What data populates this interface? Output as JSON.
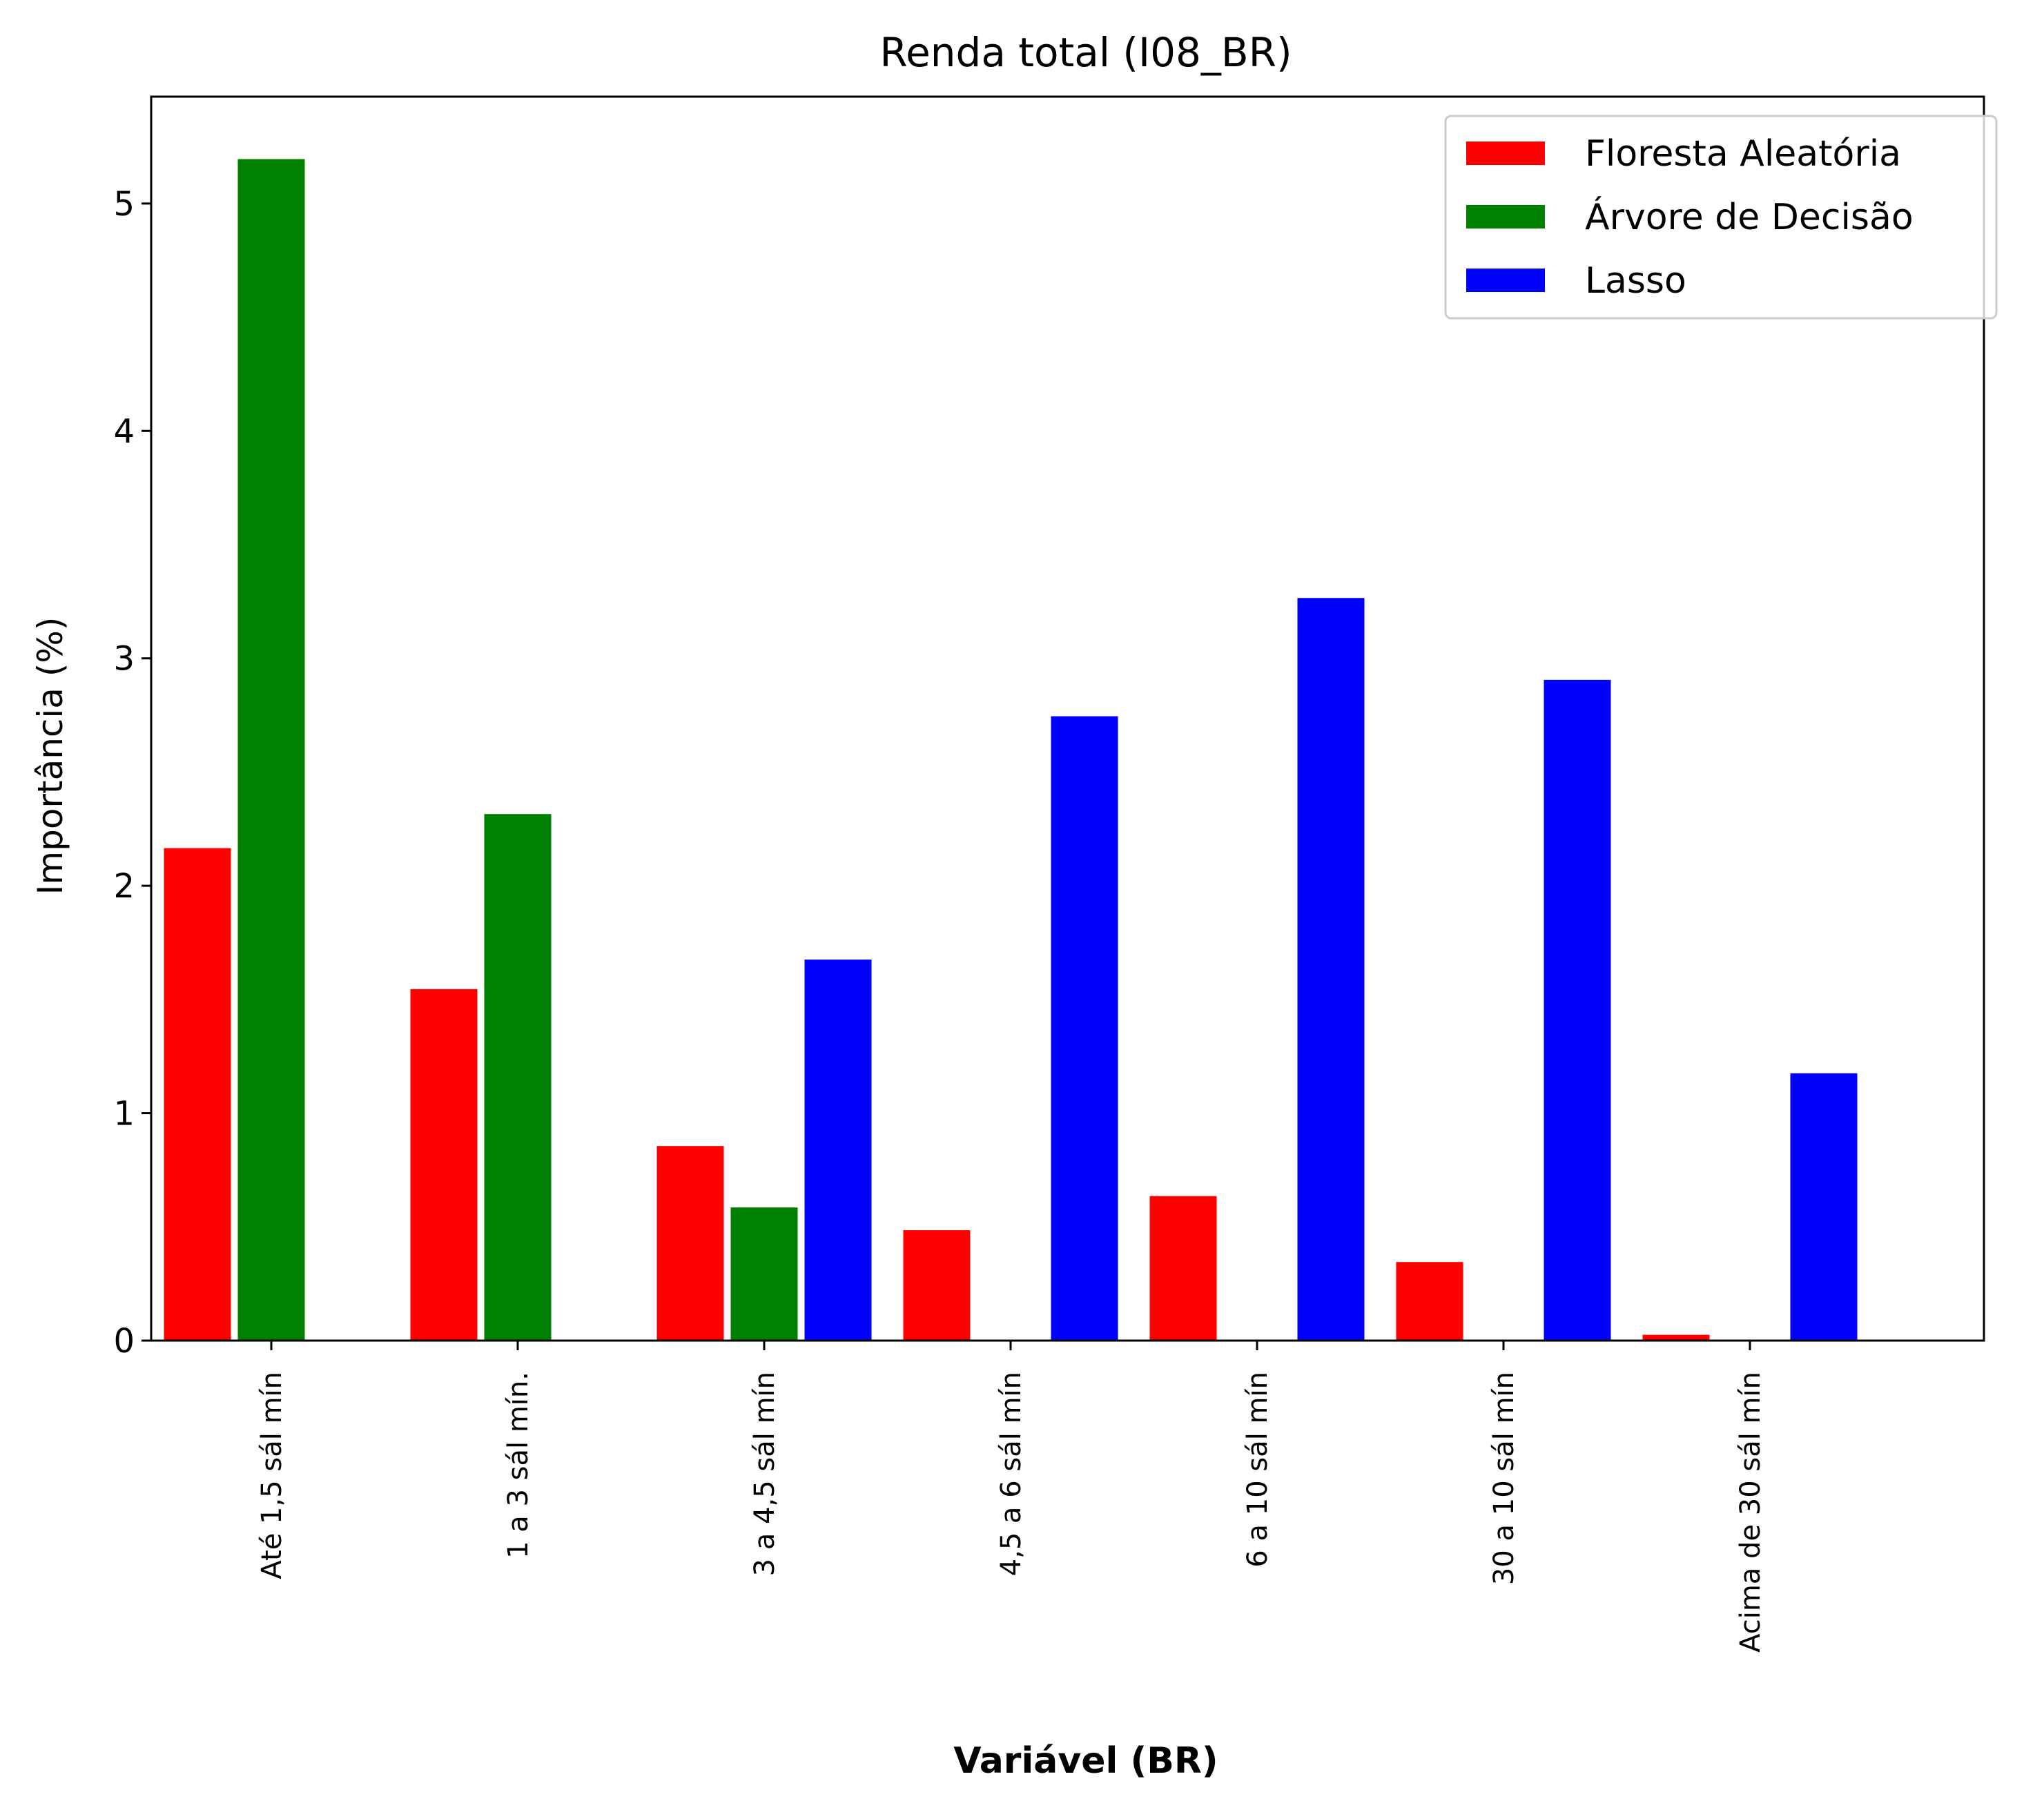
{
  "chart_data": {
    "type": "bar",
    "title": "Renda total (I08_BR)",
    "xlabel": "Variável (BR)",
    "ylabel": "Importância (%)",
    "ylim": [
      0,
      5.47
    ],
    "yticks": [
      "0",
      "1",
      "2",
      "3",
      "4",
      "5"
    ],
    "categories": [
      "Até 1,5 sál mín",
      "1 a 3 sál mín.",
      "3 a 4,5 sál mín",
      "4,5 a 6 sál mín",
      "6 a 10 sál mín",
      "30 a 10 sál mín",
      "Acima de 30 sál mín"
    ],
    "series": [
      {
        "name": "Floresta Aleatória",
        "color": "#ff0000",
        "values": [
          2.17,
          1.55,
          0.86,
          0.49,
          0.64,
          0.35,
          0.03
        ]
      },
      {
        "name": "Árvore de Decisão",
        "color": "#008000",
        "values": [
          5.2,
          2.32,
          0.59,
          null,
          null,
          null,
          null
        ]
      },
      {
        "name": "Lasso",
        "color": "#0000ff",
        "values": [
          null,
          null,
          1.68,
          2.75,
          3.27,
          2.91,
          1.18
        ]
      }
    ],
    "legend": "top-right",
    "grid": false
  }
}
